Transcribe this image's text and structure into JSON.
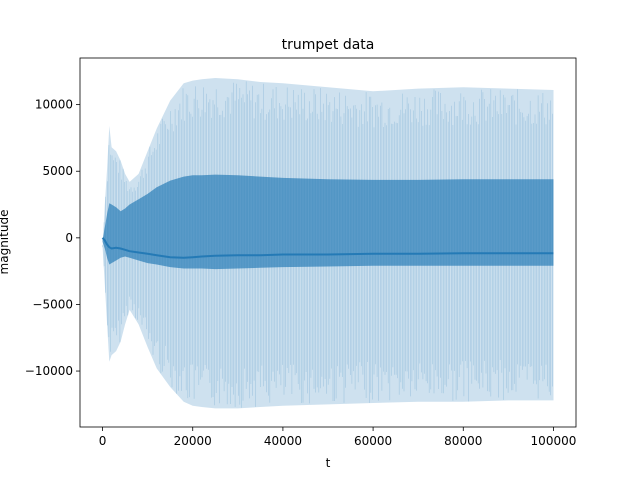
{
  "chart_data": {
    "type": "area",
    "title": "trumpet data",
    "xlabel": "t",
    "ylabel": "magnitude",
    "xlim": [
      -5000,
      105000
    ],
    "ylim": [
      -14200,
      13500
    ],
    "xticks": [
      0,
      20000,
      40000,
      60000,
      80000,
      100000
    ],
    "xtick_labels": [
      "0",
      "20000",
      "40000",
      "60000",
      "80000",
      "100000"
    ],
    "yticks": [
      -10000,
      -5000,
      0,
      5000,
      10000
    ],
    "ytick_labels": [
      "−10000",
      "−5000",
      "0",
      "5000",
      "10000"
    ],
    "grid": false,
    "colors": {
      "series": "#1f77b4",
      "axes": "#000000",
      "background": "#ffffff"
    },
    "envelope": {
      "t": [
        0,
        500,
        1000,
        1500,
        2000,
        3000,
        4000,
        5000,
        6000,
        8000,
        10000,
        12000,
        15000,
        18000,
        20000,
        22000,
        25000,
        30000,
        35000,
        40000,
        50000,
        60000,
        70000,
        80000,
        90000,
        100000
      ],
      "outer_upper": [
        -800,
        2500,
        5200,
        8400,
        6800,
        6500,
        5800,
        4800,
        4200,
        4800,
        6500,
        8200,
        10300,
        11600,
        11800,
        11900,
        12000,
        11900,
        11700,
        11600,
        11300,
        11000,
        11200,
        11300,
        11200,
        11100
      ],
      "outer_lower": [
        -600,
        -3500,
        -6500,
        -9300,
        -8800,
        -8500,
        -7800,
        -6500,
        -5400,
        -6500,
        -8200,
        -9800,
        -11200,
        -12300,
        -12600,
        -12700,
        -12800,
        -12800,
        -12700,
        -12600,
        -12500,
        -12400,
        -12300,
        -12300,
        -12200,
        -12200
      ],
      "inner_upper": [
        -200,
        800,
        1800,
        2600,
        2500,
        2300,
        2000,
        2200,
        2500,
        2900,
        3300,
        3800,
        4300,
        4600,
        4700,
        4700,
        4750,
        4700,
        4600,
        4500,
        4400,
        4350,
        4350,
        4400,
        4400,
        4400
      ],
      "inner_lower": [
        -300,
        -800,
        -1500,
        -2000,
        -1900,
        -1700,
        -1500,
        -1400,
        -1500,
        -1700,
        -1900,
        -2000,
        -2200,
        -2300,
        -2300,
        -2300,
        -2350,
        -2300,
        -2250,
        -2200,
        -2150,
        -2100,
        -2100,
        -2100,
        -2100,
        -2100
      ],
      "center": [
        0,
        -200,
        -500,
        -700,
        -800,
        -750,
        -800,
        -900,
        -1000,
        -1100,
        -1200,
        -1300,
        -1450,
        -1500,
        -1450,
        -1400,
        -1350,
        -1300,
        -1300,
        -1250,
        -1250,
        -1200,
        -1200,
        -1150,
        -1150,
        -1150
      ]
    }
  }
}
